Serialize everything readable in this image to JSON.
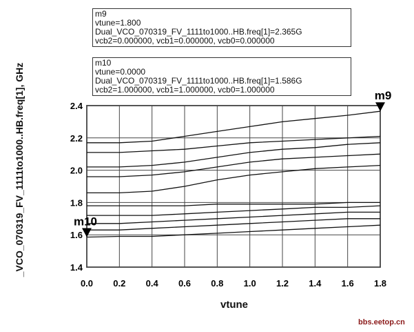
{
  "markers": [
    {
      "name": "m9",
      "lines": [
        "m9",
        "vtune=1.800",
        "Dual_VCO_070319_FV_1111to1000..HB.freq[1]=2.365G",
        "vcb2=0.000000, vcb1=0.000000, vcb0=0.000000"
      ],
      "x": 1.8,
      "y": 2.365
    },
    {
      "name": "m10",
      "lines": [
        "m10",
        "vtune=0.0000",
        "Dual_VCO_070319_FV_1111to1000..HB.freq[1]=1.586G",
        "vcb2=1.000000, vcb1=1.000000, vcb0=1.000000"
      ],
      "x": 0.0,
      "y": 1.586
    }
  ],
  "watermark": "bbs.eetop.cn",
  "chart_data": {
    "type": "line",
    "title": "",
    "xlabel": "vtune",
    "ylabel": "_VCO_070319_FV_1111to1000..HB.freq[1], GHz",
    "xlim": [
      0.0,
      1.8
    ],
    "ylim": [
      1.4,
      2.4
    ],
    "xticks": [
      0.0,
      0.2,
      0.4,
      0.6,
      0.8,
      1.0,
      1.2,
      1.4,
      1.6,
      1.8
    ],
    "xtick_labels": [
      "0.0",
      "0.2",
      "0.4",
      "0.6",
      "0.8",
      "1.0",
      "1.2",
      "1.4",
      "1.6",
      "1.8"
    ],
    "yticks": [
      1.4,
      1.6,
      1.8,
      2.0,
      2.2,
      2.4
    ],
    "ytick_labels": [
      "1.4",
      "1.6",
      "1.8",
      "2.0",
      "2.2",
      "2.4"
    ],
    "grid": true,
    "line_color": "#111111",
    "x": [
      0.0,
      0.2,
      0.4,
      0.6,
      0.8,
      1.0,
      1.2,
      1.4,
      1.6,
      1.8
    ],
    "series": [
      {
        "values": [
          2.17,
          2.17,
          2.18,
          2.21,
          2.24,
          2.27,
          2.3,
          2.32,
          2.34,
          2.365
        ]
      },
      {
        "values": [
          2.11,
          2.11,
          2.12,
          2.13,
          2.15,
          2.17,
          2.18,
          2.19,
          2.2,
          2.21
        ]
      },
      {
        "values": [
          2.02,
          2.02,
          2.03,
          2.05,
          2.08,
          2.11,
          2.13,
          2.14,
          2.16,
          2.17
        ]
      },
      {
        "values": [
          1.96,
          1.96,
          1.97,
          1.99,
          2.02,
          2.05,
          2.07,
          2.08,
          2.09,
          2.1
        ]
      },
      {
        "values": [
          1.86,
          1.86,
          1.87,
          1.9,
          1.94,
          1.97,
          1.99,
          2.01,
          2.02,
          2.03
        ]
      },
      {
        "values": [
          1.78,
          1.78,
          1.78,
          1.78,
          1.79,
          1.79,
          1.79,
          1.79,
          1.8,
          1.8
        ]
      },
      {
        "values": [
          1.72,
          1.72,
          1.72,
          1.73,
          1.74,
          1.75,
          1.76,
          1.77,
          1.77,
          1.78
        ]
      },
      {
        "values": [
          1.67,
          1.67,
          1.68,
          1.69,
          1.7,
          1.71,
          1.72,
          1.73,
          1.74,
          1.74
        ]
      },
      {
        "values": [
          1.63,
          1.63,
          1.64,
          1.65,
          1.66,
          1.67,
          1.68,
          1.69,
          1.7,
          1.7
        ]
      },
      {
        "values": [
          1.586,
          1.59,
          1.59,
          1.6,
          1.61,
          1.62,
          1.63,
          1.64,
          1.65,
          1.66
        ]
      }
    ]
  }
}
